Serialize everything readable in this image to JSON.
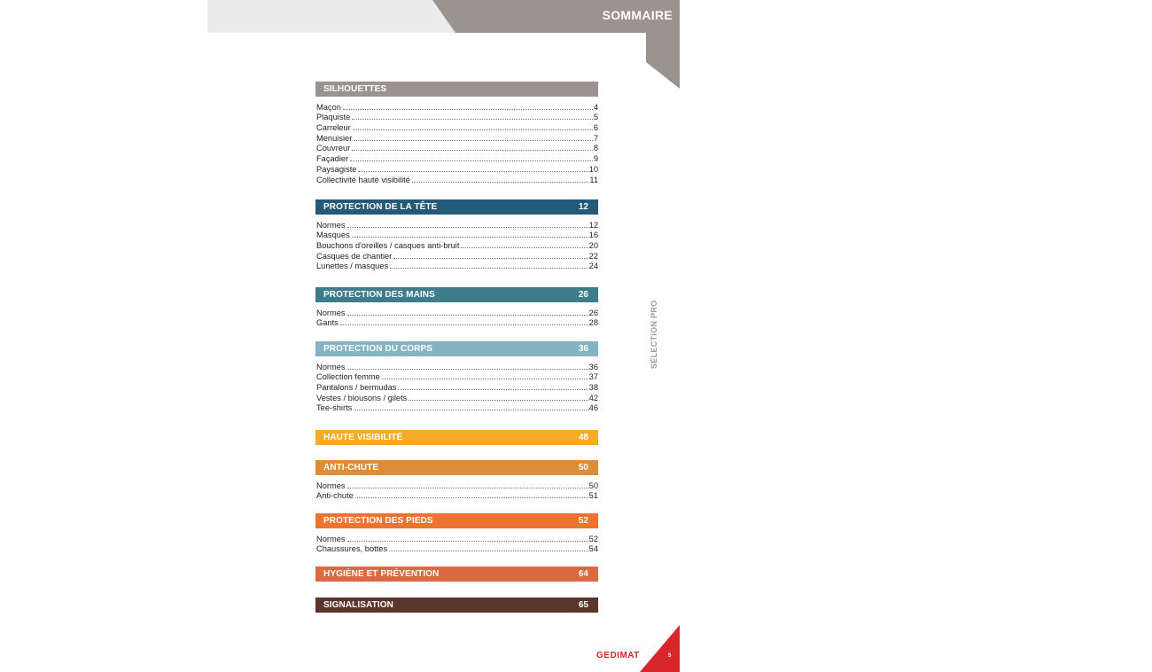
{
  "header": {
    "title": "SOMMAIRE"
  },
  "side_label": "SÉLECTION PRO",
  "sections": [
    {
      "title": "SILHOUETTES",
      "page": "",
      "color": "#9a9390",
      "entries": [
        {
          "label": "Maçon",
          "page": "4"
        },
        {
          "label": "Plaquiste",
          "page": "5"
        },
        {
          "label": "Carreleur",
          "page": "6"
        },
        {
          "label": "Menuisier",
          "page": "7"
        },
        {
          "label": "Couvreur",
          "page": "8"
        },
        {
          "label": "Façadier",
          "page": "9"
        },
        {
          "label": "Paysagiste",
          "page": "10"
        },
        {
          "label": "Collectivité haute visibilité",
          "page": "11"
        }
      ]
    },
    {
      "title": "PROTECTION DE LA TÊTE",
      "page": "12",
      "color": "#245a78",
      "entries": [
        {
          "label": "Normes",
          "page": "12"
        },
        {
          "label": "Masques",
          "page": "16"
        },
        {
          "label": "Bouchons d'oreilles / casques anti-bruit",
          "page": "20"
        },
        {
          "label": "Casques de chantier",
          "page": "22"
        },
        {
          "label": "Lunettes / masques",
          "page": "24"
        }
      ]
    },
    {
      "title": "PROTECTION DES MAINS",
      "page": "26",
      "color": "#3e7c8c",
      "entries": [
        {
          "label": "Normes",
          "page": "26"
        },
        {
          "label": "Gants",
          "page": "28"
        }
      ]
    },
    {
      "title": "PROTECTION DU CORPS",
      "page": "36",
      "color": "#83b4c4",
      "entries": [
        {
          "label": "Normes",
          "page": "36"
        },
        {
          "label": "Collection femme",
          "page": "37"
        },
        {
          "label": "Pantalons / bermudas",
          "page": "38"
        },
        {
          "label": "Vestes / blousons / gilets",
          "page": "42"
        },
        {
          "label": "Tee-shirts",
          "page": "46"
        }
      ]
    },
    {
      "title": "HAUTE VISIBILITÉ",
      "page": "48",
      "color": "#f4ab28",
      "entries": []
    },
    {
      "title": "ANTI-CHUTE",
      "page": "50",
      "color": "#dd8d37",
      "entries": [
        {
          "label": "Normes",
          "page": "50"
        },
        {
          "label": "Anti-chute",
          "page": "51"
        }
      ]
    },
    {
      "title": "PROTECTION DES PIEDS",
      "page": "52",
      "color": "#ee7331",
      "entries": [
        {
          "label": "Normes",
          "page": "52"
        },
        {
          "label": "Chaussures, bottes",
          "page": "54"
        }
      ]
    },
    {
      "title": "HYGIÈNE ET PRÉVENTION",
      "page": "64",
      "color": "#d96a42",
      "entries": []
    },
    {
      "title": "SIGNALISATION",
      "page": "65",
      "color": "#5c362a",
      "entries": []
    }
  ],
  "footer": {
    "logo": "GEDIMAT",
    "page_number": "5"
  },
  "colors": {
    "header_gray": "#9a9390",
    "header_light": "#ececec",
    "corner_red": "#d8262b"
  }
}
